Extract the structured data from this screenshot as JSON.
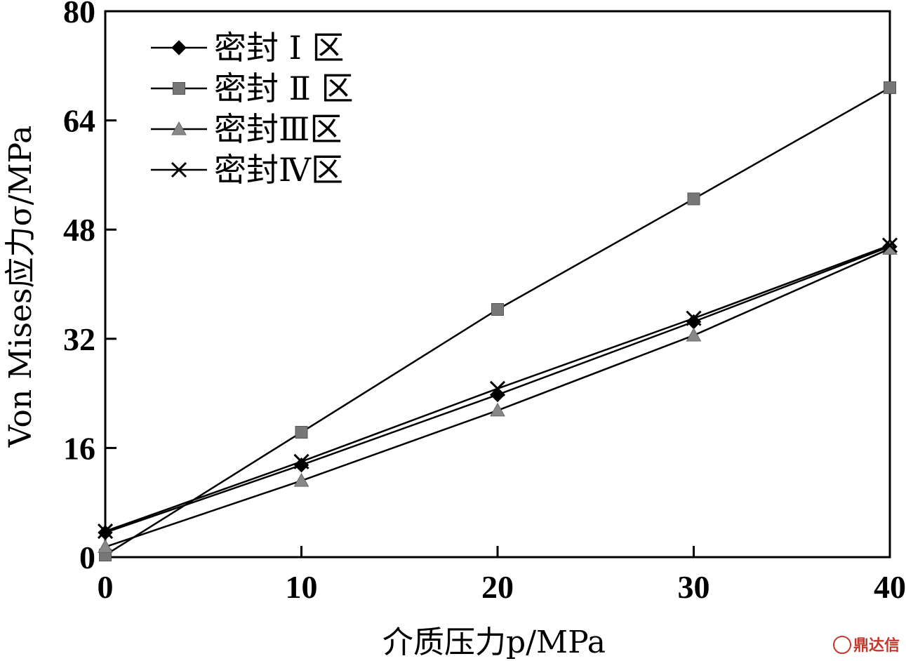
{
  "chart_data": {
    "type": "line",
    "x": [
      0,
      10,
      20,
      30,
      40
    ],
    "xlim": [
      0,
      40
    ],
    "ylim": [
      0,
      80
    ],
    "xticks": [
      "0",
      "10",
      "20",
      "30",
      "40"
    ],
    "yticks": [
      "0",
      "16",
      "32",
      "48",
      "64",
      "80"
    ],
    "xlabel": "介质压力p/MPa",
    "ylabel": "Von Mises应力σ/MPa",
    "grid": false,
    "legend_position": "top-left",
    "series": [
      {
        "name": "密封 Ⅰ 区",
        "marker": "diamond",
        "color": "#000000",
        "values": [
          3.6,
          13.5,
          23.8,
          34.5,
          45.5
        ]
      },
      {
        "name": "密封 Ⅱ 区",
        "marker": "square",
        "color": "#777777",
        "values": [
          0.3,
          18.3,
          36.3,
          52.5,
          68.8
        ]
      },
      {
        "name": "密封Ⅲ区",
        "marker": "triangle",
        "color": "#888888",
        "values": [
          1.5,
          11.2,
          21.5,
          32.5,
          45.2
        ]
      },
      {
        "name": "密封Ⅳ区",
        "marker": "x",
        "color": "#000000",
        "values": [
          3.8,
          14.0,
          24.7,
          35.0,
          45.7
        ]
      }
    ]
  },
  "watermark": "鼎达信"
}
